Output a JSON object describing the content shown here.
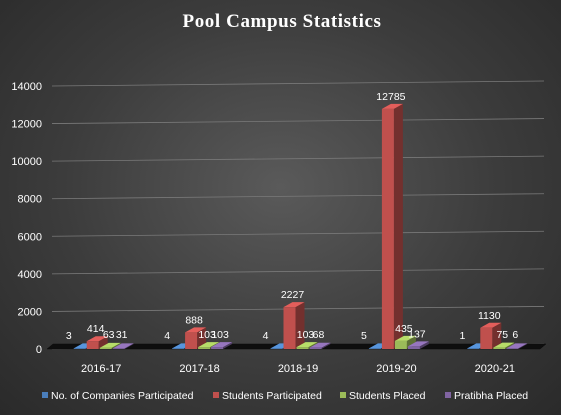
{
  "chart_data": {
    "type": "bar",
    "title": "Pool Campus  Statistics",
    "xlabel": "",
    "ylabel": "",
    "ylim": [
      0,
      14000
    ],
    "yticks": [
      0,
      2000,
      4000,
      6000,
      8000,
      10000,
      12000,
      14000
    ],
    "categories": [
      "2016-17",
      "2017-18",
      "2018-19",
      "2019-20",
      "2020-21"
    ],
    "series": [
      {
        "name": "No. of Companies Participated",
        "color": "#4a7ebb",
        "values": [
          3,
          4,
          4,
          5,
          1
        ]
      },
      {
        "name": "Students Participated",
        "color": "#c0504d",
        "values": [
          414,
          888,
          2227,
          12785,
          1130
        ]
      },
      {
        "name": "Students Placed",
        "color": "#9bbb59",
        "values": [
          63,
          103,
          103,
          435,
          75
        ]
      },
      {
        "name": "Pratibha Placed",
        "color": "#8064a2",
        "values": [
          31,
          103,
          68,
          137,
          6
        ]
      }
    ],
    "grid": true,
    "legend_position": "bottom"
  }
}
